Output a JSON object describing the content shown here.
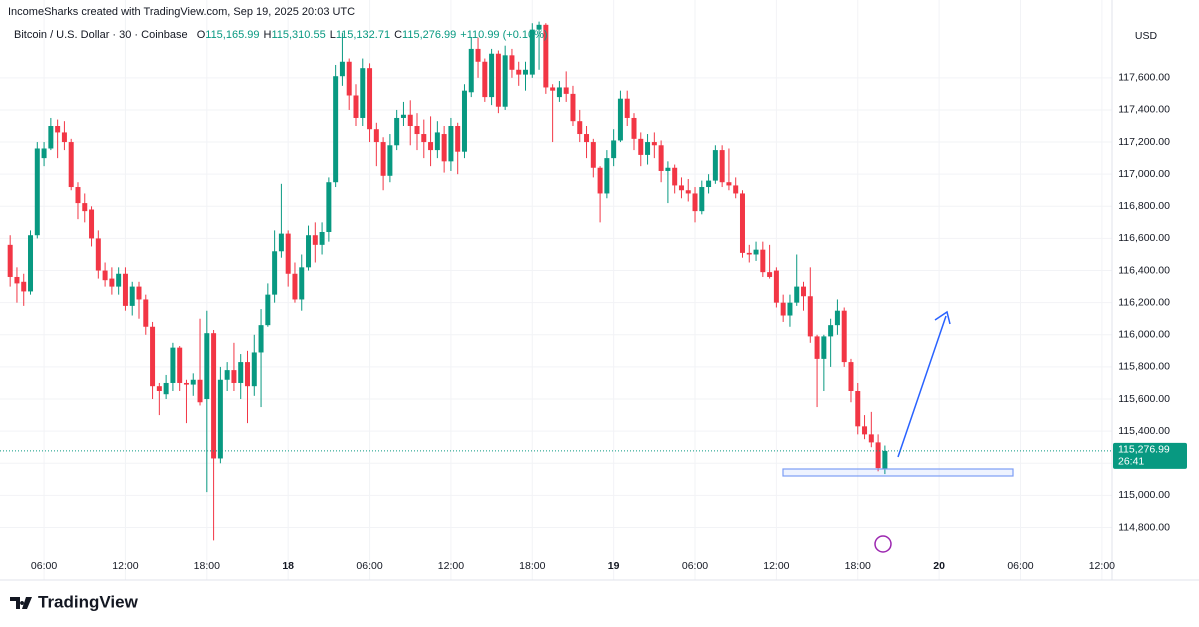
{
  "header": {
    "credit": "IncomeSharks created with TradingView.com, Sep 19, 2025 20:03 UTC",
    "symbol": "Bitcoin / U.S. Dollar · 30 · Coinbase",
    "legend": [
      {
        "key": "O",
        "value": "115,165.99"
      },
      {
        "key": "H",
        "value": "115,310.55"
      },
      {
        "key": "L",
        "value": "115,132.71"
      },
      {
        "key": "C",
        "value": "115,276.99"
      }
    ],
    "change": "+110.99 (+0.10%)"
  },
  "brand": "TradingView",
  "chart_data": {
    "type": "candlestick",
    "currency": "USD",
    "up_color": "#089981",
    "down_color": "#f23645",
    "grid": true,
    "ylim": [
      114660,
      117960
    ],
    "yticks": [
      {
        "value": 114800,
        "label": "114,800.00"
      },
      {
        "value": 115000,
        "label": "115,000.00"
      },
      {
        "value": 115200,
        "label": "115,200.00"
      },
      {
        "value": 115400,
        "label": "115,400.00"
      },
      {
        "value": 115600,
        "label": "115,600.00"
      },
      {
        "value": 115800,
        "label": "115,800.00"
      },
      {
        "value": 116000,
        "label": "116,000.00"
      },
      {
        "value": 116200,
        "label": "116,200.00"
      },
      {
        "value": 116400,
        "label": "116,400.00"
      },
      {
        "value": 116600,
        "label": "116,600.00"
      },
      {
        "value": 116800,
        "label": "116,800.00"
      },
      {
        "value": 117000,
        "label": "117,000.00"
      },
      {
        "value": 117200,
        "label": "117,200.00"
      },
      {
        "value": 117400,
        "label": "117,400.00"
      },
      {
        "value": 117600,
        "label": "117,600.00"
      }
    ],
    "xlim": [
      -1.5,
      162.2
    ],
    "xticks": [
      {
        "value": 5,
        "label": "06:00"
      },
      {
        "value": 17,
        "label": "12:00"
      },
      {
        "value": 29,
        "label": "18:00"
      },
      {
        "value": 41,
        "label": "18"
      },
      {
        "value": 53,
        "label": "06:00"
      },
      {
        "value": 65,
        "label": "12:00"
      },
      {
        "value": 77,
        "label": "18:00"
      },
      {
        "value": 89,
        "label": "19"
      },
      {
        "value": 101,
        "label": "06:00"
      },
      {
        "value": 113,
        "label": "12:00"
      },
      {
        "value": 125,
        "label": "18:00"
      },
      {
        "value": 137,
        "label": "20"
      },
      {
        "value": 149,
        "label": "06:00"
      },
      {
        "value": 161,
        "label": "12:00"
      }
    ],
    "last_price": {
      "value": 115276.99,
      "label": "115,276.99"
    },
    "countdown": "26:41",
    "candles": [
      [
        116560,
        116620,
        116300,
        116360
      ],
      [
        116360,
        116420,
        116200,
        116320
      ],
      [
        116330,
        116380,
        116180,
        116270
      ],
      [
        116270,
        116650,
        116250,
        116620
      ],
      [
        116620,
        117200,
        116600,
        117160
      ],
      [
        117100,
        117200,
        117050,
        117160
      ],
      [
        117160,
        117350,
        117150,
        117300
      ],
      [
        117300,
        117340,
        117100,
        117260
      ],
      [
        117260,
        117330,
        117150,
        117200
      ],
      [
        117200,
        117220,
        116900,
        116920
      ],
      [
        116920,
        116950,
        116720,
        116820
      ],
      [
        116820,
        116880,
        116700,
        116770
      ],
      [
        116780,
        116800,
        116550,
        116600
      ],
      [
        116600,
        116650,
        116350,
        116400
      ],
      [
        116400,
        116450,
        116300,
        116340
      ],
      [
        116350,
        116420,
        116250,
        116300
      ],
      [
        116300,
        116420,
        116250,
        116380
      ],
      [
        116380,
        116420,
        116150,
        116180
      ],
      [
        116180,
        116330,
        116120,
        116300
      ],
      [
        116300,
        116330,
        116100,
        116220
      ],
      [
        116220,
        116250,
        116000,
        116050
      ],
      [
        116050,
        116080,
        115600,
        115680
      ],
      [
        115680,
        115700,
        115500,
        115650
      ],
      [
        115630,
        115750,
        115600,
        115700
      ],
      [
        115700,
        115950,
        115650,
        115920
      ],
      [
        115920,
        115930,
        115650,
        115700
      ],
      [
        115700,
        115720,
        115450,
        115690
      ],
      [
        115690,
        115760,
        115620,
        115720
      ],
      [
        115720,
        116100,
        115560,
        115580
      ],
      [
        115600,
        116150,
        115020,
        116010
      ],
      [
        116010,
        116030,
        114720,
        115230
      ],
      [
        115230,
        115800,
        115200,
        115720
      ],
      [
        115720,
        115830,
        115650,
        115780
      ],
      [
        115780,
        115950,
        115650,
        115700
      ],
      [
        115700,
        115880,
        115600,
        115830
      ],
      [
        115830,
        115900,
        115450,
        115680
      ],
      [
        115680,
        116000,
        115620,
        115890
      ],
      [
        115890,
        116160,
        115550,
        116060
      ],
      [
        116060,
        116320,
        116050,
        116250
      ],
      [
        116250,
        116650,
        116200,
        116520
      ],
      [
        116520,
        116940,
        116480,
        116630
      ],
      [
        116630,
        116650,
        116300,
        116380
      ],
      [
        116380,
        116450,
        116200,
        116220
      ],
      [
        116220,
        116500,
        116150,
        116420
      ],
      [
        116420,
        116680,
        116400,
        116620
      ],
      [
        116620,
        116700,
        116450,
        116560
      ],
      [
        116560,
        116700,
        116500,
        116640
      ],
      [
        116640,
        116980,
        116580,
        116950
      ],
      [
        116950,
        117680,
        116920,
        117610
      ],
      [
        117610,
        117880,
        117550,
        117700
      ],
      [
        117700,
        117720,
        117400,
        117490
      ],
      [
        117490,
        117560,
        117300,
        117350
      ],
      [
        117350,
        117720,
        117300,
        117660
      ],
      [
        117660,
        117690,
        117200,
        117280
      ],
      [
        117280,
        117320,
        117050,
        117200
      ],
      [
        117200,
        117230,
        116900,
        116990
      ],
      [
        116990,
        117250,
        116950,
        117180
      ],
      [
        117180,
        117400,
        117150,
        117350
      ],
      [
        117350,
        117450,
        117300,
        117370
      ],
      [
        117370,
        117460,
        117180,
        117300
      ],
      [
        117300,
        117380,
        117150,
        117250
      ],
      [
        117250,
        117340,
        117100,
        117200
      ],
      [
        117200,
        117360,
        117050,
        117150
      ],
      [
        117150,
        117330,
        117100,
        117260
      ],
      [
        117250,
        117300,
        117010,
        117080
      ],
      [
        117080,
        117350,
        117020,
        117300
      ],
      [
        117300,
        117320,
        117000,
        117140
      ],
      [
        117140,
        117560,
        117100,
        117520
      ],
      [
        117510,
        117850,
        117480,
        117780
      ],
      [
        117780,
        117850,
        117600,
        117700
      ],
      [
        117700,
        117720,
        117450,
        117480
      ],
      [
        117480,
        117780,
        117430,
        117750
      ],
      [
        117750,
        117770,
        117380,
        117420
      ],
      [
        117420,
        117800,
        117400,
        117740
      ],
      [
        117740,
        117780,
        117600,
        117650
      ],
      [
        117650,
        117700,
        117550,
        117620
      ],
      [
        117620,
        117700,
        117520,
        117650
      ],
      [
        117620,
        117940,
        117600,
        117900
      ],
      [
        117900,
        117950,
        117650,
        117930
      ],
      [
        117930,
        117940,
        117500,
        117540
      ],
      [
        117540,
        117560,
        117200,
        117520
      ],
      [
        117480,
        117580,
        117450,
        117540
      ],
      [
        117540,
        117640,
        117450,
        117500
      ],
      [
        117500,
        117550,
        117300,
        117330
      ],
      [
        117330,
        117400,
        117200,
        117250
      ],
      [
        117250,
        117300,
        117100,
        117200
      ],
      [
        117200,
        117220,
        116980,
        117040
      ],
      [
        117040,
        117050,
        116700,
        116880
      ],
      [
        116880,
        117150,
        116850,
        117100
      ],
      [
        117100,
        117280,
        117050,
        117210
      ],
      [
        117210,
        117520,
        117200,
        117470
      ],
      [
        117470,
        117520,
        117300,
        117350
      ],
      [
        117350,
        117380,
        117150,
        117220
      ],
      [
        117220,
        117260,
        117050,
        117120
      ],
      [
        117120,
        117250,
        117060,
        117200
      ],
      [
        117200,
        117260,
        117100,
        117180
      ],
      [
        117180,
        117210,
        116950,
        117020
      ],
      [
        117020,
        117080,
        116820,
        117040
      ],
      [
        117040,
        117060,
        116880,
        116930
      ],
      [
        116930,
        116980,
        116850,
        116900
      ],
      [
        116900,
        116970,
        116830,
        116880
      ],
      [
        116880,
        116920,
        116700,
        116770
      ],
      [
        116770,
        116960,
        116750,
        116920
      ],
      [
        116920,
        117000,
        116880,
        116960
      ],
      [
        116960,
        117180,
        116940,
        117150
      ],
      [
        117150,
        117180,
        116920,
        116950
      ],
      [
        116950,
        117160,
        116900,
        116930
      ],
      [
        116930,
        116980,
        116850,
        116880
      ],
      [
        116880,
        116900,
        116480,
        116510
      ],
      [
        116510,
        116560,
        116450,
        116500
      ],
      [
        116500,
        116580,
        116460,
        116530
      ],
      [
        116530,
        116580,
        116360,
        116390
      ],
      [
        116390,
        116560,
        116350,
        116360
      ],
      [
        116400,
        116420,
        116170,
        116200
      ],
      [
        116200,
        116250,
        116080,
        116120
      ],
      [
        116120,
        116250,
        116050,
        116200
      ],
      [
        116200,
        116500,
        116180,
        116300
      ],
      [
        116300,
        116330,
        116150,
        116240
      ],
      [
        116240,
        116420,
        115950,
        115990
      ],
      [
        115990,
        116000,
        115550,
        115850
      ],
      [
        115850,
        116000,
        115650,
        115990
      ],
      [
        115990,
        116100,
        115800,
        116060
      ],
      [
        116060,
        116220,
        116000,
        116150
      ],
      [
        116150,
        116170,
        115800,
        115830
      ],
      [
        115830,
        115850,
        115580,
        115650
      ],
      [
        115650,
        115700,
        115380,
        115430
      ],
      [
        115430,
        115500,
        115350,
        115380
      ],
      [
        115380,
        115520,
        115300,
        115330
      ],
      [
        115330,
        115380,
        115150,
        115170
      ],
      [
        115165.99,
        115310.55,
        115132.71,
        115276.99
      ]
    ]
  }
}
